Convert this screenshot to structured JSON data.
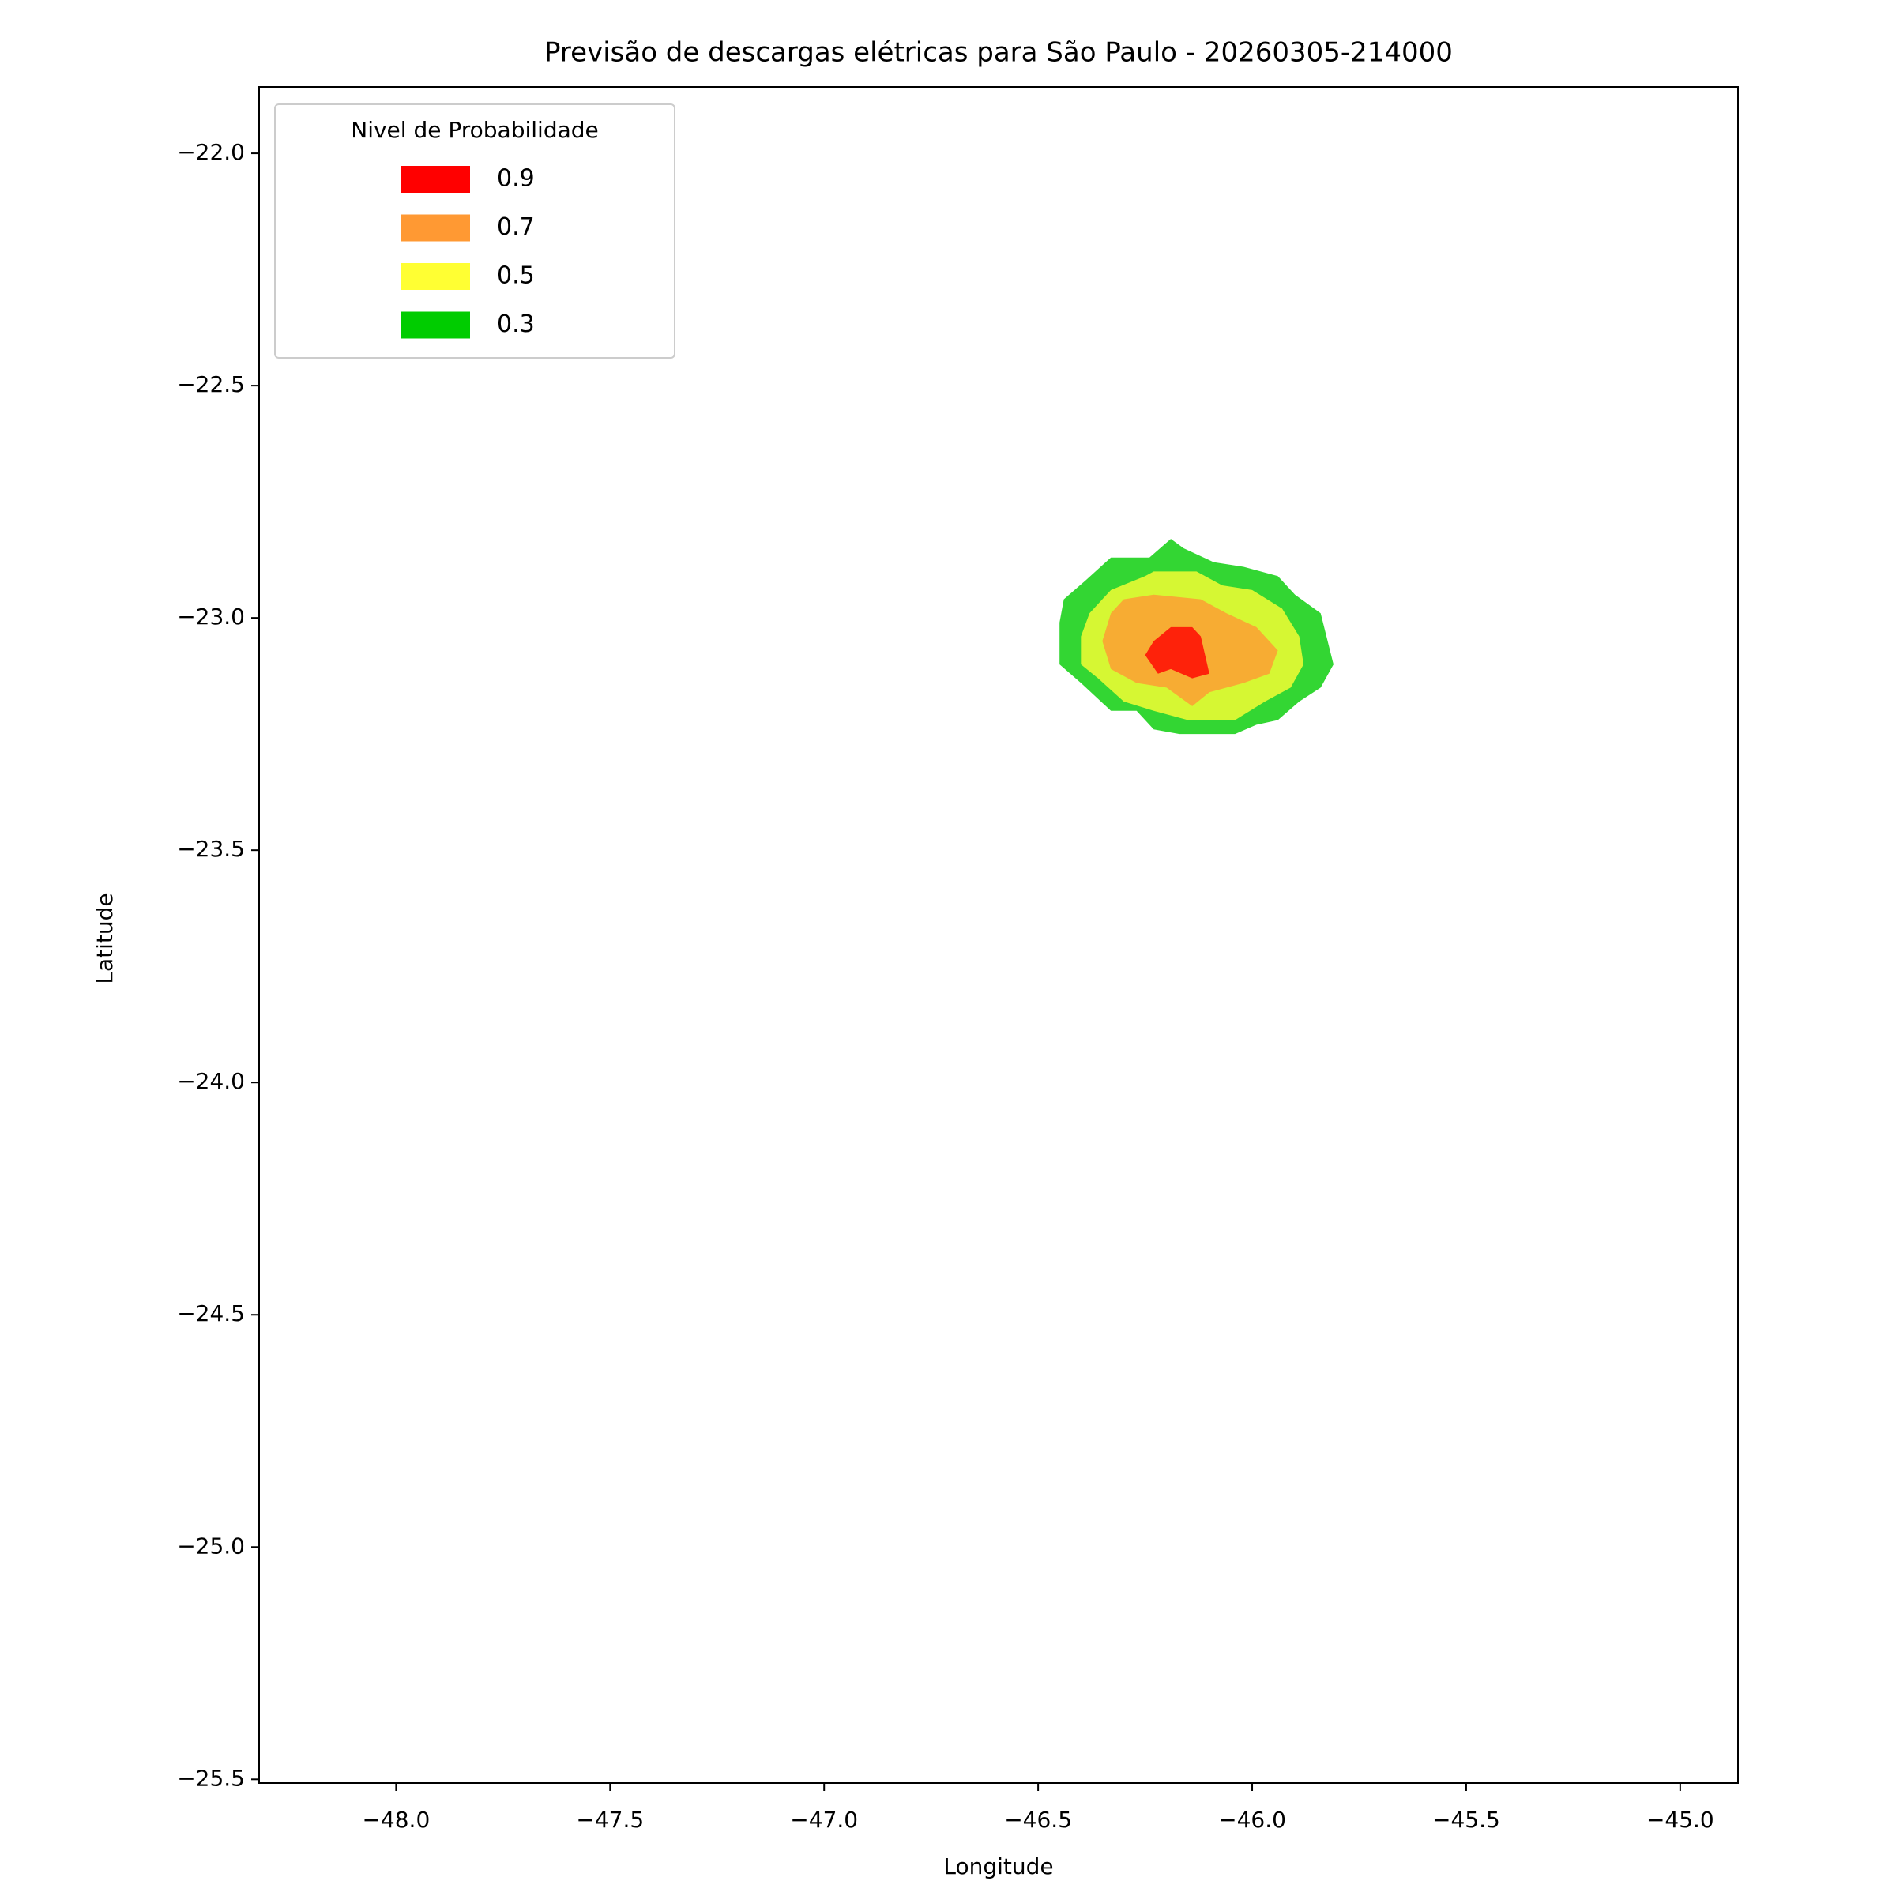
{
  "chart_data": {
    "type": "contour",
    "title": "Previsão de descargas elétricas para São Paulo - 20260305-214000",
    "x_label": "Longitude",
    "y_label": "Latitude",
    "xlim": [
      -48.32,
      -44.865
    ],
    "ylim": [
      -25.508,
      -21.857
    ],
    "xticks": [
      {
        "value": -48.0,
        "label": "−48.0"
      },
      {
        "value": -47.5,
        "label": "−47.5"
      },
      {
        "value": -47.0,
        "label": "−47.0"
      },
      {
        "value": -46.5,
        "label": "−46.5"
      },
      {
        "value": -46.0,
        "label": "−46.0"
      },
      {
        "value": -45.5,
        "label": "−45.5"
      },
      {
        "value": -45.0,
        "label": "−45.0"
      }
    ],
    "yticks": [
      {
        "value": -22.0,
        "label": "−22.0"
      },
      {
        "value": -22.5,
        "label": "−22.5"
      },
      {
        "value": -23.0,
        "label": "−23.0"
      },
      {
        "value": -23.5,
        "label": "−23.5"
      },
      {
        "value": -24.0,
        "label": "−24.0"
      },
      {
        "value": -24.5,
        "label": "−24.5"
      },
      {
        "value": -25.0,
        "label": "−25.0"
      },
      {
        "value": -25.5,
        "label": "−25.5"
      }
    ],
    "legend_title": "Nivel de Probabilidade",
    "legend_loc": "upper left",
    "alpha": 0.8,
    "series": [
      {
        "name": "0.9",
        "color": "#ff0000",
        "x": [
          -46.25,
          -46.23,
          -46.19,
          -46.14,
          -46.12,
          -46.1,
          -46.14,
          -46.19,
          -46.22
        ],
        "y": [
          -23.08,
          -23.05,
          -23.02,
          -23.02,
          -23.04,
          -23.12,
          -23.13,
          -23.11,
          -23.12
        ]
      },
      {
        "name": "0.7",
        "color": "#ff9933",
        "x": [
          -46.35,
          -46.33,
          -46.3,
          -46.23,
          -46.12,
          -46.06,
          -45.99,
          -45.94,
          -45.96,
          -46.02,
          -46.1,
          -46.14,
          -46.2,
          -46.27,
          -46.33
        ],
        "y": [
          -23.05,
          -22.99,
          -22.96,
          -22.95,
          -22.96,
          -22.99,
          -23.02,
          -23.07,
          -23.12,
          -23.14,
          -23.16,
          -23.19,
          -23.15,
          -23.14,
          -23.11
        ]
      },
      {
        "name": "0.5",
        "color": "#ffff33",
        "x": [
          -46.4,
          -46.38,
          -46.33,
          -46.25,
          -46.23,
          -46.13,
          -46.07,
          -46.0,
          -45.93,
          -45.89,
          -45.88,
          -45.91,
          -45.97,
          -46.04,
          -46.15,
          -46.23,
          -46.3,
          -46.36,
          -46.4
        ],
        "y": [
          -23.04,
          -22.99,
          -22.94,
          -22.91,
          -22.9,
          -22.9,
          -22.93,
          -22.94,
          -22.98,
          -23.04,
          -23.1,
          -23.15,
          -23.18,
          -23.22,
          -23.22,
          -23.2,
          -23.18,
          -23.13,
          -23.1
        ]
      },
      {
        "name": "0.3",
        "color": "#00cc00",
        "x": [
          -46.45,
          -46.44,
          -46.39,
          -46.33,
          -46.24,
          -46.19,
          -46.16,
          -46.09,
          -46.02,
          -45.94,
          -45.9,
          -45.84,
          -45.81,
          -45.84,
          -45.89,
          -45.94,
          -45.99,
          -46.04,
          -46.17,
          -46.23,
          -46.27,
          -46.33,
          -46.4,
          -46.45
        ],
        "y": [
          -23.01,
          -22.96,
          -22.92,
          -22.87,
          -22.87,
          -22.83,
          -22.85,
          -22.88,
          -22.89,
          -22.91,
          -22.95,
          -22.99,
          -23.1,
          -23.15,
          -23.18,
          -23.22,
          -23.23,
          -23.25,
          -23.25,
          -23.24,
          -23.2,
          -23.2,
          -23.14,
          -23.1
        ]
      }
    ]
  }
}
